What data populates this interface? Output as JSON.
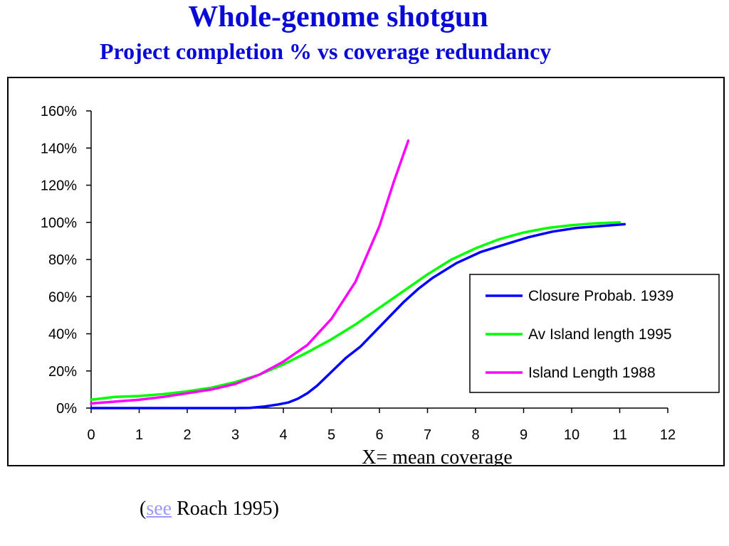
{
  "title": "Whole-genome shotgun",
  "subtitle": "Project completion %  vs coverage redundancy",
  "citation": {
    "open_paren": "(",
    "link_text": "see",
    "rest": " Roach 1995)",
    "link_color": "#9999ff"
  },
  "colors": {
    "title": "#0a0ad6",
    "closure": "#0000ff",
    "av_island": "#00ff00",
    "island_1988": "#ff00ff"
  },
  "chart_data": {
    "type": "line",
    "title": "",
    "xlabel": "X= mean coverage",
    "ylabel": "",
    "xlim": [
      0,
      12
    ],
    "ylim": [
      0,
      1.6
    ],
    "x_ticks": [
      "0",
      "1",
      "2",
      "3",
      "4",
      "5",
      "6",
      "7",
      "8",
      "9",
      "10",
      "11",
      "12"
    ],
    "y_ticks": [
      "0%",
      "20%",
      "40%",
      "60%",
      "80%",
      "100%",
      "120%",
      "140%",
      "160%"
    ],
    "grid": false,
    "legend_position": "right",
    "series": [
      {
        "name": "Closure Probab. 1939",
        "color": "#0000ff",
        "x": [
          0,
          0.5,
          1,
          1.5,
          2,
          2.5,
          3,
          3.3,
          3.6,
          3.9,
          4.1,
          4.3,
          4.5,
          4.7,
          4.9,
          5.1,
          5.3,
          5.6,
          5.9,
          6.2,
          6.5,
          6.8,
          7.1,
          7.6,
          8.1,
          8.6,
          9.1,
          9.6,
          10.1,
          10.6,
          11.1
        ],
        "y": [
          0,
          0,
          0,
          0,
          0,
          0,
          0,
          0.001,
          0.008,
          0.02,
          0.03,
          0.05,
          0.08,
          0.12,
          0.17,
          0.22,
          0.27,
          0.33,
          0.41,
          0.49,
          0.57,
          0.64,
          0.7,
          0.78,
          0.84,
          0.88,
          0.92,
          0.95,
          0.97,
          0.98,
          0.99
        ]
      },
      {
        "name": "Av Island length 1995",
        "color": "#00ff00",
        "x": [
          0,
          0.5,
          1,
          1.5,
          2,
          2.5,
          3,
          3.5,
          4,
          4.5,
          5,
          5.5,
          6,
          6.5,
          7,
          7.5,
          8,
          8.5,
          9,
          9.5,
          10,
          10.5,
          11
        ],
        "y": [
          0.045,
          0.06,
          0.065,
          0.075,
          0.09,
          0.11,
          0.14,
          0.18,
          0.235,
          0.3,
          0.37,
          0.45,
          0.54,
          0.63,
          0.72,
          0.8,
          0.86,
          0.91,
          0.945,
          0.97,
          0.985,
          0.995,
          1.0
        ]
      },
      {
        "name": "Island Length 1988",
        "color": "#ff00ff",
        "x": [
          0,
          0.5,
          1,
          1.5,
          2,
          2.5,
          3,
          3.5,
          4,
          4.5,
          5,
          5.5,
          6,
          6.3,
          6.6
        ],
        "y": [
          0.025,
          0.035,
          0.045,
          0.06,
          0.08,
          0.1,
          0.13,
          0.18,
          0.25,
          0.34,
          0.48,
          0.68,
          0.98,
          1.22,
          1.44
        ]
      }
    ]
  }
}
